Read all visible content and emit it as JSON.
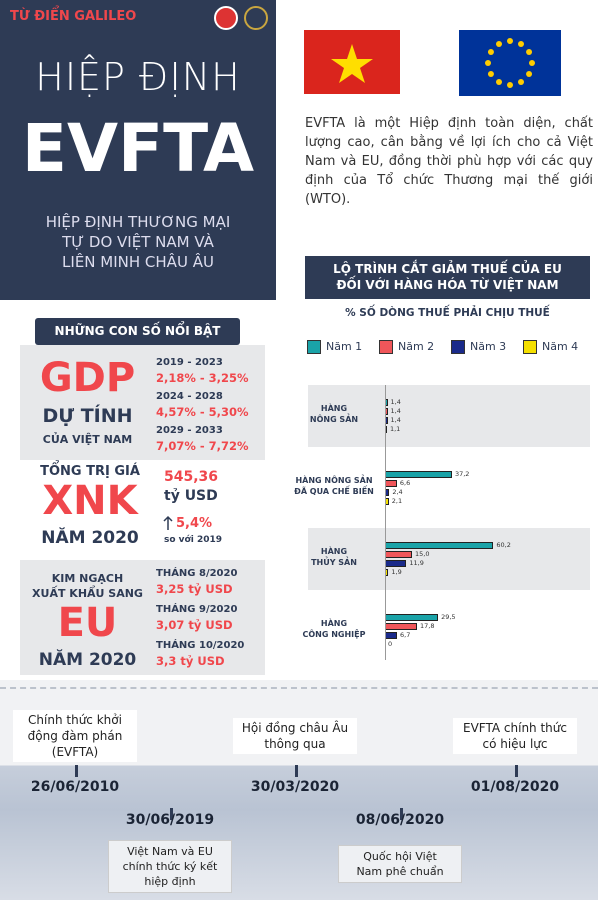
{
  "header": {
    "brand": "TỪ ĐIỂN GALILEO",
    "title_line1": "HIỆP ĐỊNH",
    "title_line2": "EVFTA",
    "subtitle": "HIỆP ĐỊNH THƯƠNG MẠI\nTỰ DO VIỆT NAM VÀ\nLIÊN MINH CHÂU ÂU"
  },
  "intro": "EVFTA là một Hiệp định toàn diện, chất lượng cao, cân bằng về lợi ích cho cả Việt Nam và EU, đồng thời phù hợp với các quy định của Tổ chức Thương mại thế giới (WTO).",
  "highlights": {
    "title": "NHỮNG CON SỐ NỔI BẬT",
    "gdp": {
      "big": "GDP",
      "line2": "DỰ TÍNH",
      "line3": "CỦA VIỆT NAM",
      "periods": [
        {
          "period": "2019 - 2023",
          "range": "2,18% - 3,25%"
        },
        {
          "period": "2024 - 2028",
          "range": "4,57% - 5,30%"
        },
        {
          "period": "2029 - 2033",
          "range": "7,07% - 7,72%"
        }
      ]
    },
    "xnk": {
      "label_top": "TỔNG TRỊ GIÁ",
      "big": "XNK",
      "label_bottom": "NĂM 2020",
      "value": "545,36",
      "unit": "tỷ USD",
      "growth": "5,4%",
      "growth_note": "so với 2019"
    },
    "eu": {
      "label_top": "KIM NGẠCH\nXUẤT KHẨU SANG",
      "big": "EU",
      "label_bottom": "NĂM 2020",
      "months": [
        {
          "month": "THÁNG 8/2020",
          "value": "3,25 tỷ USD"
        },
        {
          "month": "THÁNG 9/2020",
          "value": "3,07 tỷ USD"
        },
        {
          "month": "THÁNG 10/2020",
          "value": "3,3 tỷ USD"
        }
      ]
    }
  },
  "chart_data": {
    "type": "bar",
    "orientation": "horizontal",
    "title": "LỘ TRÌNH CẮT GIẢM THUẾ CỦA EU\nĐỐI VỚI HÀNG HÓA TỪ VIỆT NAM",
    "subtitle": "% SỐ DÒNG THUẾ PHẢI CHỊU THUẾ",
    "categories": [
      "HÀNG\nNÔNG SẢN",
      "HÀNG NÔNG SẢN\nĐÃ QUA CHẾ BIẾN",
      "HÀNG\nTHỦY SẢN",
      "HÀNG\nCÔNG NGHIỆP"
    ],
    "series": [
      {
        "name": "Năm 1",
        "color": "#1aa3a8",
        "values": [
          1.4,
          37.2,
          60.2,
          29.5
        ],
        "value_labels": [
          "1,4",
          "37,2",
          "60,2",
          "29,5"
        ]
      },
      {
        "name": "Năm 2",
        "color": "#f0565a",
        "values": [
          1.4,
          6.6,
          15.0,
          17.8
        ],
        "value_labels": [
          "1,4",
          "6,6",
          "15,0",
          "17,8"
        ]
      },
      {
        "name": "Năm 3",
        "color": "#1a2a8a",
        "values": [
          1.4,
          2.4,
          11.9,
          6.7
        ],
        "value_labels": [
          "1,4",
          "2,4",
          "11,9",
          "6,7"
        ]
      },
      {
        "name": "Năm 4",
        "color": "#f5e000",
        "values": [
          1.1,
          2.1,
          1.9,
          0
        ],
        "value_labels": [
          "1,1",
          "2,1",
          "1,9",
          "0"
        ]
      }
    ]
  },
  "timeline": [
    {
      "date": "26/06/2010",
      "text": "Chính thức khởi\nđộng đàm phán\n(EVFTA)"
    },
    {
      "date": "30/06/2019",
      "text": "Việt Nam và EU\nchính thức ký kết\nhiệp định"
    },
    {
      "date": "30/03/2020",
      "text": "Hội đồng châu Âu\nthông qua"
    },
    {
      "date": "08/06/2020",
      "text": "Quốc hội Việt\nNam phê chuẩn"
    },
    {
      "date": "01/08/2020",
      "text": "EVFTA chính thức\ncó hiệu lực"
    }
  ]
}
